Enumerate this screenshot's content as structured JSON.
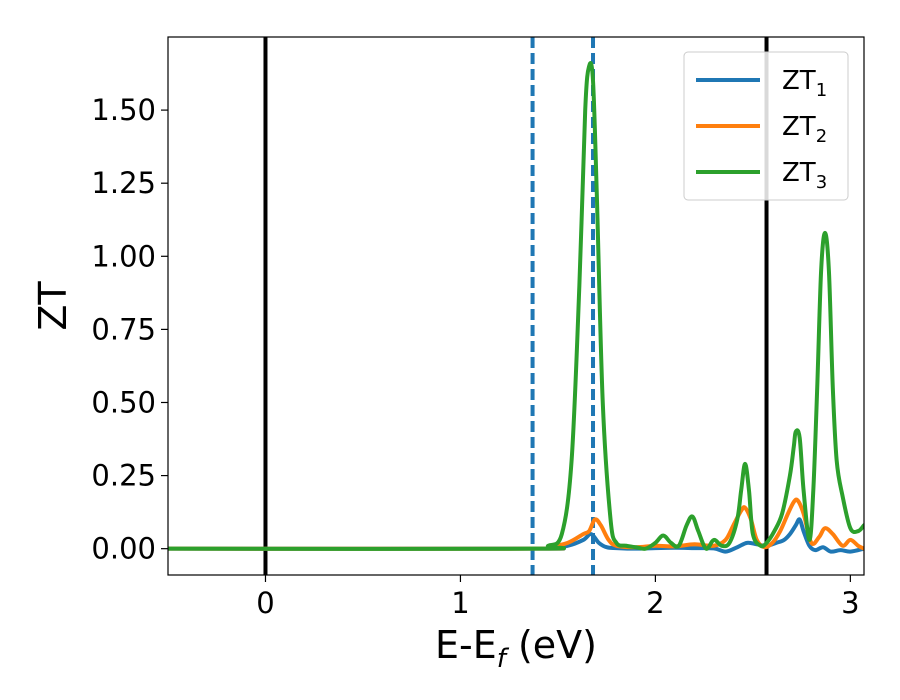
{
  "chart_data": {
    "type": "line",
    "xlabel": {
      "main": "E-E",
      "sub": "f",
      "rest": " (eV)"
    },
    "ylabel": "ZT",
    "xlim": [
      -0.5,
      3.07
    ],
    "ylim": [
      -0.09,
      1.75
    ],
    "xticks": [
      0,
      1,
      2,
      3
    ],
    "xtick_labels": [
      "0",
      "1",
      "2",
      "3"
    ],
    "yticks": [
      0.0,
      0.25,
      0.5,
      0.75,
      1.0,
      1.25,
      1.5
    ],
    "ytick_labels": [
      "0.00",
      "0.25",
      "0.50",
      "0.75",
      "1.00",
      "1.25",
      "1.50"
    ],
    "grid": false,
    "legend_position": "top-right",
    "vlines": [
      {
        "x": 0.0,
        "style": "solid",
        "color": "#000000"
      },
      {
        "x": 2.57,
        "style": "solid",
        "color": "#000000"
      },
      {
        "x": 1.37,
        "style": "dashed",
        "color": "#1f77b4"
      },
      {
        "x": 1.68,
        "style": "dashed",
        "color": "#1f77b4"
      }
    ],
    "series": [
      {
        "name": {
          "main": "ZT",
          "sub": "1"
        },
        "color": "#1f77b4",
        "x": [
          -0.5,
          1.37,
          1.45,
          1.55,
          1.63,
          1.67,
          1.71,
          1.75,
          1.8,
          1.9,
          2.0,
          2.1,
          2.2,
          2.3,
          2.36,
          2.42,
          2.47,
          2.52,
          2.57,
          2.62,
          2.66,
          2.69,
          2.72,
          2.74,
          2.76,
          2.79,
          2.82,
          2.86,
          2.9,
          2.95,
          3.0,
          3.07
        ],
        "y": [
          0,
          0,
          0.002,
          0.01,
          0.03,
          0.05,
          0.02,
          0.005,
          0.002,
          0,
          0.002,
          0.003,
          0.002,
          0.001,
          -0.01,
          0.005,
          0.02,
          0.015,
          0.01,
          0.02,
          0.03,
          0.05,
          0.08,
          0.1,
          0.06,
          0.01,
          -0.005,
          0.005,
          -0.01,
          -0.005,
          -0.01,
          0
        ]
      },
      {
        "name": {
          "main": "ZT",
          "sub": "2"
        },
        "color": "#ff7f0e",
        "x": [
          -0.5,
          1.37,
          1.45,
          1.55,
          1.63,
          1.66,
          1.69,
          1.72,
          1.76,
          1.8,
          1.9,
          2.0,
          2.1,
          2.2,
          2.3,
          2.36,
          2.4,
          2.44,
          2.46,
          2.49,
          2.52,
          2.56,
          2.6,
          2.64,
          2.68,
          2.71,
          2.73,
          2.76,
          2.8,
          2.84,
          2.87,
          2.91,
          2.96,
          3.0,
          3.04,
          3.07
        ],
        "y": [
          0,
          0,
          0.005,
          0.02,
          0.05,
          0.06,
          0.1,
          0.08,
          0.03,
          0.01,
          0.005,
          0.01,
          0.008,
          0.015,
          0.01,
          0.03,
          0.08,
          0.13,
          0.14,
          0.1,
          0.03,
          0.005,
          0.02,
          0.06,
          0.12,
          0.16,
          0.165,
          0.12,
          0.02,
          0.04,
          0.07,
          0.05,
          0.01,
          0.03,
          0.01,
          0
        ]
      },
      {
        "name": {
          "main": "ZT",
          "sub": "3"
        },
        "color": "#2ca02c",
        "x": [
          -0.5,
          1.37,
          1.45,
          1.52,
          1.57,
          1.61,
          1.64,
          1.66,
          1.68,
          1.7,
          1.73,
          1.77,
          1.8,
          1.85,
          1.9,
          1.95,
          2.0,
          2.04,
          2.08,
          2.12,
          2.16,
          2.19,
          2.22,
          2.26,
          2.3,
          2.34,
          2.38,
          2.42,
          2.44,
          2.46,
          2.48,
          2.5,
          2.54,
          2.57,
          2.61,
          2.65,
          2.69,
          2.71,
          2.72,
          2.74,
          2.76,
          2.79,
          2.81,
          2.83,
          2.85,
          2.87,
          2.89,
          2.91,
          2.93,
          2.96,
          3.0,
          3.04,
          3.07
        ],
        "y": [
          0,
          0,
          0.01,
          0.05,
          0.3,
          0.9,
          1.5,
          1.65,
          1.6,
          1.2,
          0.5,
          0.1,
          0.02,
          0.01,
          0.005,
          0.0,
          0.02,
          0.045,
          0.02,
          0.01,
          0.08,
          0.11,
          0.06,
          0.0,
          0.03,
          0.01,
          0.02,
          0.1,
          0.2,
          0.29,
          0.2,
          0.05,
          0.01,
          0.02,
          0.06,
          0.12,
          0.25,
          0.35,
          0.4,
          0.38,
          0.2,
          0.03,
          0.2,
          0.55,
          0.95,
          1.08,
          0.95,
          0.55,
          0.3,
          0.18,
          0.07,
          0.06,
          0.08
        ]
      }
    ]
  }
}
